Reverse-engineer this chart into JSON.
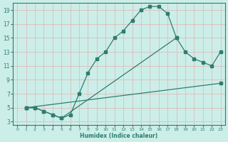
{
  "xlabel": "Humidex (Indice chaleur)",
  "bg_color": "#cceee8",
  "grid_color": "#aaddcc",
  "line_color": "#2e7d6e",
  "xlim": [
    -0.5,
    23.5
  ],
  "ylim": [
    2.5,
    20
  ],
  "xticks": [
    0,
    1,
    2,
    3,
    4,
    5,
    6,
    7,
    8,
    9,
    10,
    11,
    12,
    13,
    14,
    15,
    16,
    17,
    18,
    19,
    20,
    21,
    22,
    23
  ],
  "yticks": [
    3,
    5,
    7,
    9,
    11,
    13,
    15,
    17,
    19
  ],
  "line1_x": [
    1,
    2,
    3,
    4,
    5,
    6,
    7,
    8,
    9,
    10,
    11,
    12,
    13,
    14,
    15,
    16,
    17,
    18
  ],
  "line1_y": [
    5,
    5,
    4.5,
    4,
    3.5,
    4,
    7,
    10,
    12,
    13,
    15,
    16,
    17.5,
    19,
    19.5,
    19.5,
    18.5,
    15
  ],
  "line2_x": [
    1,
    2,
    3,
    4,
    5,
    18,
    19,
    20,
    21,
    22,
    23
  ],
  "line2_y": [
    5,
    5,
    4.5,
    4,
    3.5,
    15,
    13,
    12,
    11.5,
    11,
    13
  ],
  "line3_x": [
    1,
    23
  ],
  "line3_y": [
    5,
    8.5
  ]
}
